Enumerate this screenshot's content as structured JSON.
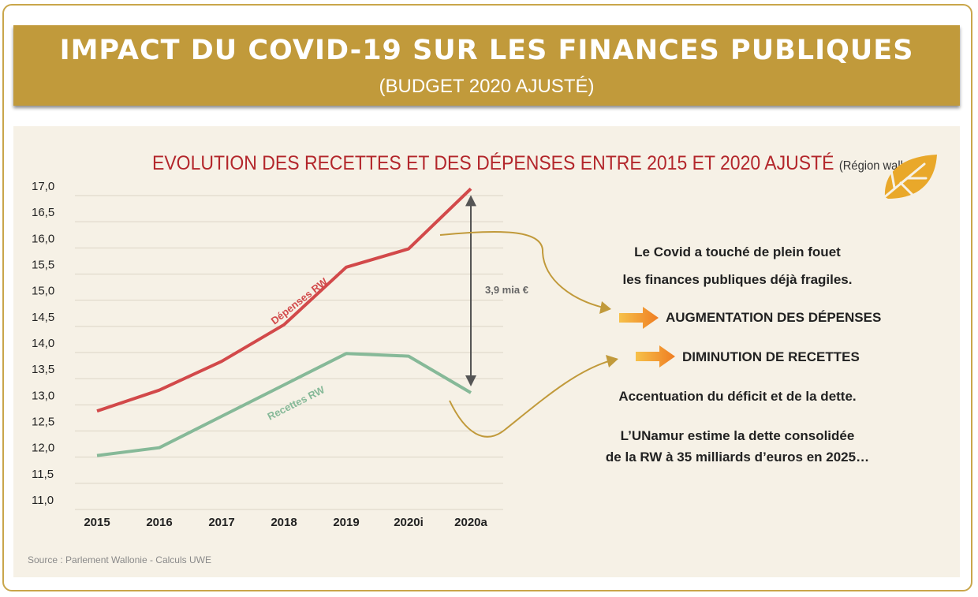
{
  "header": {
    "title": "IMPACT DU COVID-19 SUR LES FINANCES PUBLIQUES",
    "subtitle": "(BUDGET 2020 AJUSTÉ)"
  },
  "chart_title": "EVOLUTION DES RECETTES ET DES DÉPENSES ENTRE 2015 ET 2020 AJUSTÉ",
  "chart_title_sub": "(Région wallonne)",
  "source": "Source : Parlement Wallonie - Calculs UWE",
  "side_text": {
    "line1": "Le Covid a touché de plein fouet",
    "line2": "les finances publiques déjà fragiles.",
    "item1": "AUGMENTATION DES DÉPENSES",
    "item2": "DIMINUTION DE RECETTES",
    "line3": "Accentuation du déficit et de la dette.",
    "line4": "L’UNamur estime la dette consolidée",
    "line5": "de la RW à 35 milliards d’euros en 2025…"
  },
  "colors": {
    "gold": "#c19a3b",
    "title_red": "#b3262b",
    "depenses": "#d2494a",
    "recettes": "#86b998",
    "arrow_orange": "#f2902a"
  },
  "chart_data": {
    "type": "line",
    "categories": [
      "2015",
      "2016",
      "2017",
      "2018",
      "2019",
      "2020i",
      "2020a"
    ],
    "y_ticks": [
      "17,0",
      "16,5",
      "16,0",
      "15,5",
      "15,0",
      "14,5",
      "14,0",
      "13,5",
      "13,0",
      "12,5",
      "12,0",
      "11,5",
      "11,0"
    ],
    "ylim": [
      11.0,
      17.0
    ],
    "series": [
      {
        "name": "Dépenses RW",
        "values": [
          12.7,
          13.1,
          13.65,
          14.35,
          15.45,
          15.8,
          16.95
        ]
      },
      {
        "name": "Recettes RW",
        "values": [
          11.85,
          12.0,
          12.6,
          13.2,
          13.8,
          13.75,
          13.05
        ]
      }
    ],
    "gap_annotation": "3,9 mia €",
    "grid": "horizontal"
  }
}
